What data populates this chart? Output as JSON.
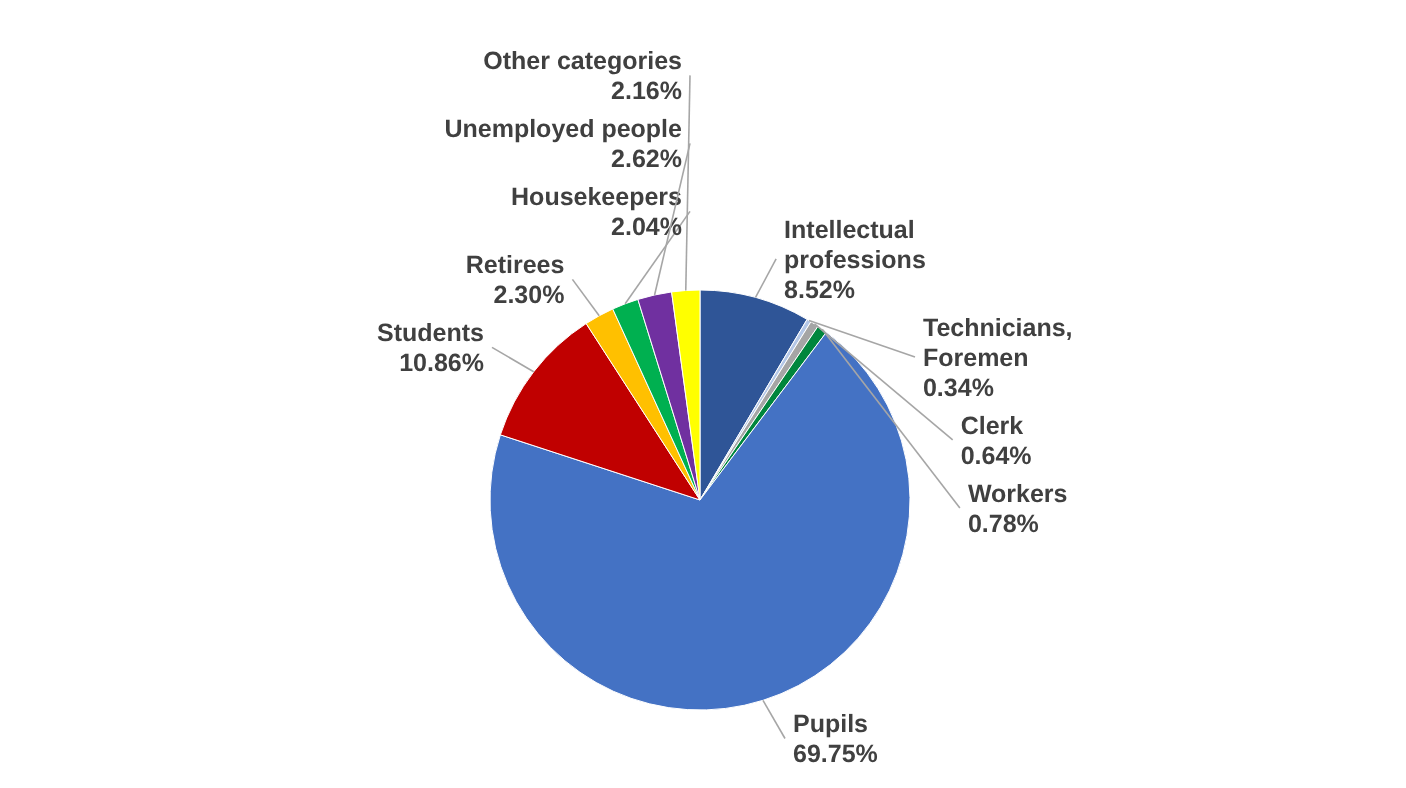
{
  "chart_data": {
    "type": "pie",
    "categories": [
      "Intellectual professions",
      "Technicians, Foremen",
      "Clerk",
      "Workers",
      "Pupils",
      "Students",
      "Retirees",
      "Housekeepers",
      "Unemployed people",
      "Other categories"
    ],
    "values": [
      8.52,
      0.34,
      0.64,
      0.78,
      69.75,
      10.86,
      2.3,
      2.04,
      2.62,
      2.16
    ],
    "colors": [
      "#2f5597",
      "#b4c7e7",
      "#a5a5a5",
      "#00863d",
      "#4472c4",
      "#c00000",
      "#ffc000",
      "#00b050",
      "#7030a0",
      "#ffff00"
    ],
    "value_labels": [
      "8.52%",
      "0.34%",
      "0.64%",
      "0.78%",
      "69.75%",
      "10.86%",
      "2.30%",
      "2.04%",
      "2.62%",
      "2.16%"
    ]
  }
}
